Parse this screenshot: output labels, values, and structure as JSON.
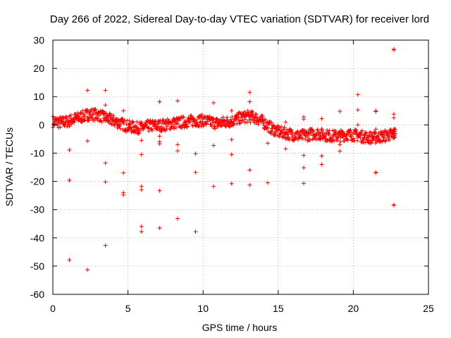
{
  "chart_data": {
    "type": "scatter",
    "title": "Day 266 of 2022, Sidereal Day-to-day VTEC variation (SDTVAR) for receiver lord",
    "xlabel": "GPS time / hours",
    "ylabel": "SDTVAR / TECUs",
    "xlim": [
      0,
      25
    ],
    "ylim": [
      -60,
      30
    ],
    "xticks": [
      0,
      5,
      10,
      15,
      20,
      25
    ],
    "xtick_labels": [
      "0",
      "5",
      "10",
      "15",
      "20",
      "25"
    ],
    "yticks": [
      -60,
      -50,
      -40,
      -30,
      -20,
      -10,
      0,
      10,
      20,
      30
    ],
    "ytick_labels": [
      "-60",
      "-50",
      "-40",
      "-30",
      "-20",
      "-10",
      "0",
      "10",
      "20",
      "30"
    ],
    "grid": true,
    "marker": "+",
    "series_color": "#ff0000",
    "trend": [
      [
        0.0,
        1.2
      ],
      [
        0.5,
        0.8
      ],
      [
        1.0,
        1.2
      ],
      [
        1.5,
        2.2
      ],
      [
        2.0,
        3.0
      ],
      [
        2.5,
        3.8
      ],
      [
        3.0,
        3.5
      ],
      [
        3.5,
        2.5
      ],
      [
        4.0,
        1.5
      ],
      [
        4.5,
        0.5
      ],
      [
        5.0,
        -0.5
      ],
      [
        5.5,
        -1.0
      ],
      [
        6.0,
        -1.0
      ],
      [
        6.5,
        -0.3
      ],
      [
        7.0,
        -0.3
      ],
      [
        7.5,
        0.0
      ],
      [
        8.0,
        0.5
      ],
      [
        8.5,
        0.8
      ],
      [
        9.0,
        1.2
      ],
      [
        9.5,
        1.5
      ],
      [
        10.0,
        1.5
      ],
      [
        10.5,
        1.0
      ],
      [
        11.0,
        0.5
      ],
      [
        11.5,
        1.0
      ],
      [
        12.0,
        1.5
      ],
      [
        12.5,
        2.5
      ],
      [
        13.0,
        3.0
      ],
      [
        13.5,
        2.5
      ],
      [
        14.0,
        1.0
      ],
      [
        14.5,
        -1.0
      ],
      [
        15.0,
        -2.5
      ],
      [
        15.5,
        -3.0
      ],
      [
        16.0,
        -3.5
      ],
      [
        16.5,
        -4.0
      ],
      [
        17.0,
        -3.5
      ],
      [
        17.5,
        -3.0
      ],
      [
        18.0,
        -3.5
      ],
      [
        18.5,
        -4.0
      ],
      [
        19.0,
        -4.0
      ],
      [
        19.5,
        -3.5
      ],
      [
        20.0,
        -3.5
      ],
      [
        20.5,
        -4.0
      ],
      [
        21.0,
        -4.5
      ],
      [
        21.5,
        -4.5
      ],
      [
        22.0,
        -4.0
      ],
      [
        22.5,
        -3.5
      ],
      [
        22.8,
        -3.0
      ]
    ],
    "outliers": [
      [
        1.1,
        -8.9
      ],
      [
        1.1,
        -19.6
      ],
      [
        1.1,
        -47.8
      ],
      [
        2.3,
        12.2
      ],
      [
        2.3,
        5.3
      ],
      [
        2.3,
        -5.7
      ],
      [
        2.3,
        -51.3
      ],
      [
        3.5,
        12.2
      ],
      [
        3.5,
        7.0
      ],
      [
        3.5,
        -13.5
      ],
      [
        3.5,
        -20.2
      ],
      [
        3.5,
        -42.7
      ],
      [
        4.7,
        5.0
      ],
      [
        4.7,
        -17.0
      ],
      [
        4.7,
        -24.0
      ],
      [
        4.7,
        -24.8
      ],
      [
        5.9,
        -5.5
      ],
      [
        5.9,
        -10.5
      ],
      [
        5.9,
        -21.8
      ],
      [
        5.9,
        -23.0
      ],
      [
        5.9,
        -36.0
      ],
      [
        5.9,
        -37.8
      ],
      [
        7.1,
        8.2
      ],
      [
        7.1,
        -4.0
      ],
      [
        7.1,
        -6.0
      ],
      [
        7.1,
        -6.7
      ],
      [
        7.1,
        -23.3
      ],
      [
        7.1,
        -36.5
      ],
      [
        8.3,
        8.5
      ],
      [
        8.3,
        -7.0
      ],
      [
        8.3,
        -9.2
      ],
      [
        8.3,
        -33.2
      ],
      [
        9.5,
        -10.2
      ],
      [
        9.5,
        -16.8
      ],
      [
        9.5,
        -37.8
      ],
      [
        10.7,
        7.8
      ],
      [
        10.7,
        -7.3
      ],
      [
        10.7,
        -21.8
      ],
      [
        11.9,
        5.0
      ],
      [
        11.9,
        -5.2
      ],
      [
        11.9,
        -10.5
      ],
      [
        11.9,
        -20.8
      ],
      [
        13.1,
        11.5
      ],
      [
        13.1,
        8.2
      ],
      [
        13.1,
        -16.0
      ],
      [
        13.1,
        -21.3
      ],
      [
        14.3,
        -6.5
      ],
      [
        14.3,
        -20.5
      ],
      [
        15.5,
        1.0
      ],
      [
        15.5,
        -8.5
      ],
      [
        16.7,
        2.8
      ],
      [
        16.7,
        2.0
      ],
      [
        16.7,
        -10.8
      ],
      [
        16.7,
        -15.2
      ],
      [
        16.7,
        -20.7
      ],
      [
        17.9,
        2.2
      ],
      [
        17.9,
        -11.0
      ],
      [
        17.9,
        -14.0
      ],
      [
        19.1,
        4.8
      ],
      [
        19.1,
        -7.0
      ],
      [
        19.1,
        -9.3
      ],
      [
        20.3,
        10.7
      ],
      [
        20.3,
        5.3
      ],
      [
        20.3,
        0.0
      ],
      [
        21.5,
        5.0
      ],
      [
        21.5,
        4.7
      ],
      [
        21.5,
        -1.5
      ],
      [
        21.5,
        -16.8
      ],
      [
        21.5,
        -17.0
      ],
      [
        22.7,
        26.8
      ],
      [
        22.7,
        26.5
      ],
      [
        22.7,
        3.8
      ],
      [
        22.7,
        2.5
      ],
      [
        22.7,
        -28.3
      ],
      [
        22.7,
        -28.5
      ]
    ]
  }
}
